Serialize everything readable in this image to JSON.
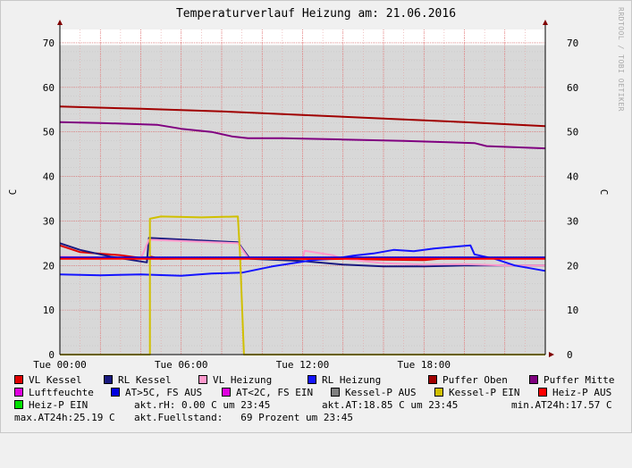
{
  "title": "Temperaturverlauf Heizung am: 21.06.2016",
  "watermark": "RRDTOOL / TOBI OETIKER",
  "chart_data": {
    "type": "line",
    "title": "Temperaturverlauf Heizung am: 21.06.2016",
    "ylabel": "C",
    "ylabel_right": "C",
    "xlim": [
      0,
      24
    ],
    "ylim": [
      0,
      73
    ],
    "y_ticks": [
      0,
      10,
      20,
      30,
      40,
      50,
      60,
      70
    ],
    "x_ticks": [
      {
        "x": 0,
        "label": "Tue 00:00"
      },
      {
        "x": 6,
        "label": "Tue 06:00"
      },
      {
        "x": 12,
        "label": "Tue 12:00"
      },
      {
        "x": 18,
        "label": "Tue 18:00"
      }
    ],
    "grid": true,
    "x_unit": "hours",
    "series": [
      {
        "name": "Luftfeuchte",
        "color": "#e000e0",
        "area": true,
        "points": [
          [
            0,
            69.5
          ],
          [
            24,
            69.5
          ]
        ]
      },
      {
        "name": "Puffer Oben",
        "color": "#a00000",
        "points": [
          [
            0,
            55.7
          ],
          [
            4,
            55.2
          ],
          [
            8,
            54.6
          ],
          [
            12,
            53.8
          ],
          [
            16,
            53.0
          ],
          [
            20,
            52.2
          ],
          [
            24,
            51.3
          ]
        ]
      },
      {
        "name": "Puffer Mitte",
        "color": "#800080",
        "points": [
          [
            0,
            52.2
          ],
          [
            2,
            52.0
          ],
          [
            4.8,
            51.6
          ],
          [
            6,
            50.7
          ],
          [
            7.5,
            50
          ],
          [
            8.5,
            49
          ],
          [
            9.3,
            48.6
          ],
          [
            11,
            48.6
          ],
          [
            14,
            48.3
          ],
          [
            17,
            48
          ],
          [
            20.5,
            47.5
          ],
          [
            21.1,
            46.8
          ],
          [
            24,
            46.3
          ]
        ]
      },
      {
        "name": "VL Kessel",
        "color": "#e00000",
        "points": [
          [
            0,
            24.5
          ],
          [
            1,
            23
          ],
          [
            3,
            22.3
          ],
          [
            4.3,
            21.5
          ],
          [
            4.5,
            22
          ],
          [
            5,
            21.5
          ],
          [
            8,
            21.7
          ],
          [
            10,
            21.6
          ],
          [
            13,
            21.4
          ],
          [
            14,
            21.5
          ],
          [
            16,
            21.3
          ],
          [
            18,
            21.2
          ],
          [
            19,
            21.6
          ],
          [
            24,
            21.6
          ]
        ]
      },
      {
        "name": "RL Kessel",
        "color": "#1a1a80",
        "points": [
          [
            0,
            25
          ],
          [
            1,
            23.5
          ],
          [
            2.5,
            22
          ],
          [
            4.3,
            20.7
          ],
          [
            4.4,
            26.2
          ],
          [
            8.8,
            25.2
          ],
          [
            9.4,
            21.5
          ],
          [
            12,
            21
          ],
          [
            14,
            20.2
          ],
          [
            16,
            19.8
          ],
          [
            18,
            19.8
          ],
          [
            20,
            20
          ],
          [
            22,
            20
          ],
          [
            24,
            20
          ]
        ]
      },
      {
        "name": "VL Heizung",
        "color": "#ff99cc",
        "points": [
          [
            0,
            22
          ],
          [
            2,
            21.8
          ],
          [
            4,
            21.5
          ],
          [
            4.4,
            25.8
          ],
          [
            8.8,
            25.0
          ],
          [
            9.3,
            21.8
          ],
          [
            12,
            21.5
          ],
          [
            12.1,
            23.3
          ],
          [
            13.5,
            22.3
          ],
          [
            14,
            21.5
          ],
          [
            16,
            20.5
          ],
          [
            18,
            20.2
          ],
          [
            20,
            20.3
          ],
          [
            22,
            20
          ],
          [
            24,
            20
          ]
        ]
      },
      {
        "name": "RL Heizung",
        "color": "#1414ff",
        "points": [
          [
            0,
            18
          ],
          [
            2,
            17.8
          ],
          [
            4,
            18
          ],
          [
            6,
            17.7
          ],
          [
            7.5,
            18.2
          ],
          [
            9,
            18.4
          ],
          [
            10.5,
            19.8
          ],
          [
            11.5,
            20.5
          ],
          [
            12.5,
            21.2
          ],
          [
            13.5,
            21.5
          ],
          [
            14.5,
            22.2
          ],
          [
            15.5,
            22.7
          ],
          [
            16.5,
            23.5
          ],
          [
            17.5,
            23.2
          ],
          [
            18.5,
            23.8
          ],
          [
            19.5,
            24.2
          ],
          [
            20.3,
            24.5
          ],
          [
            20.5,
            22.5
          ],
          [
            21.5,
            21.5
          ],
          [
            22.5,
            20
          ],
          [
            24,
            18.8
          ]
        ]
      },
      {
        "name": "Kessel-P EIN",
        "color": "#d0c000",
        "points": [
          [
            0,
            0
          ],
          [
            4.45,
            0
          ],
          [
            4.45,
            30.5
          ],
          [
            5,
            31
          ],
          [
            7,
            30.8
          ],
          [
            8.8,
            31
          ],
          [
            8.9,
            23
          ],
          [
            9.1,
            0
          ],
          [
            24,
            0
          ]
        ]
      },
      {
        "name": "AT>5C, FS AUS",
        "color": "#0000e0",
        "points": [
          [
            0,
            21.8
          ],
          [
            24,
            21.8
          ]
        ]
      },
      {
        "name": "Heiz-P AUS",
        "color": "#ff0000",
        "points": [
          [
            0,
            21.5
          ],
          [
            24,
            21.5
          ]
        ]
      }
    ]
  },
  "legend": [
    {
      "label": "VL Kessel",
      "color": "#e00000"
    },
    {
      "label": "RL Kessel",
      "color": "#1a1a80"
    },
    {
      "label": "VL Heizung",
      "color": "#ff99cc"
    },
    {
      "label": "RL Heizung",
      "color": "#1414ff"
    },
    {
      "label": "Puffer Oben",
      "color": "#a00000"
    },
    {
      "label": "Puffer Mitte",
      "color": "#800080"
    },
    {
      "label": "Luftfeuchte",
      "color": "#e000e0"
    },
    {
      "label": "AT>5C, FS AUS",
      "color": "#0000e0"
    },
    {
      "label": "AT<2C, FS EIN",
      "color": "#e000e0"
    },
    {
      "label": "Kessel-P AUS",
      "color": "#808080"
    },
    {
      "label": "Kessel-P EIN",
      "color": "#d0c000"
    },
    {
      "label": "Heiz-P AUS",
      "color": "#ff0000"
    },
    {
      "label": "Heiz-P EIN",
      "color": "#00e000"
    }
  ],
  "info": {
    "rh": "akt.rH: 0.00 C um 23:45",
    "at": "akt.AT:18.85 C um 23:45",
    "min": "min.AT24h:17.57 C",
    "max": "max.AT24h:25.19 C",
    "fuell": "akt.Fuellstand:   69 Prozent um 23:45"
  }
}
